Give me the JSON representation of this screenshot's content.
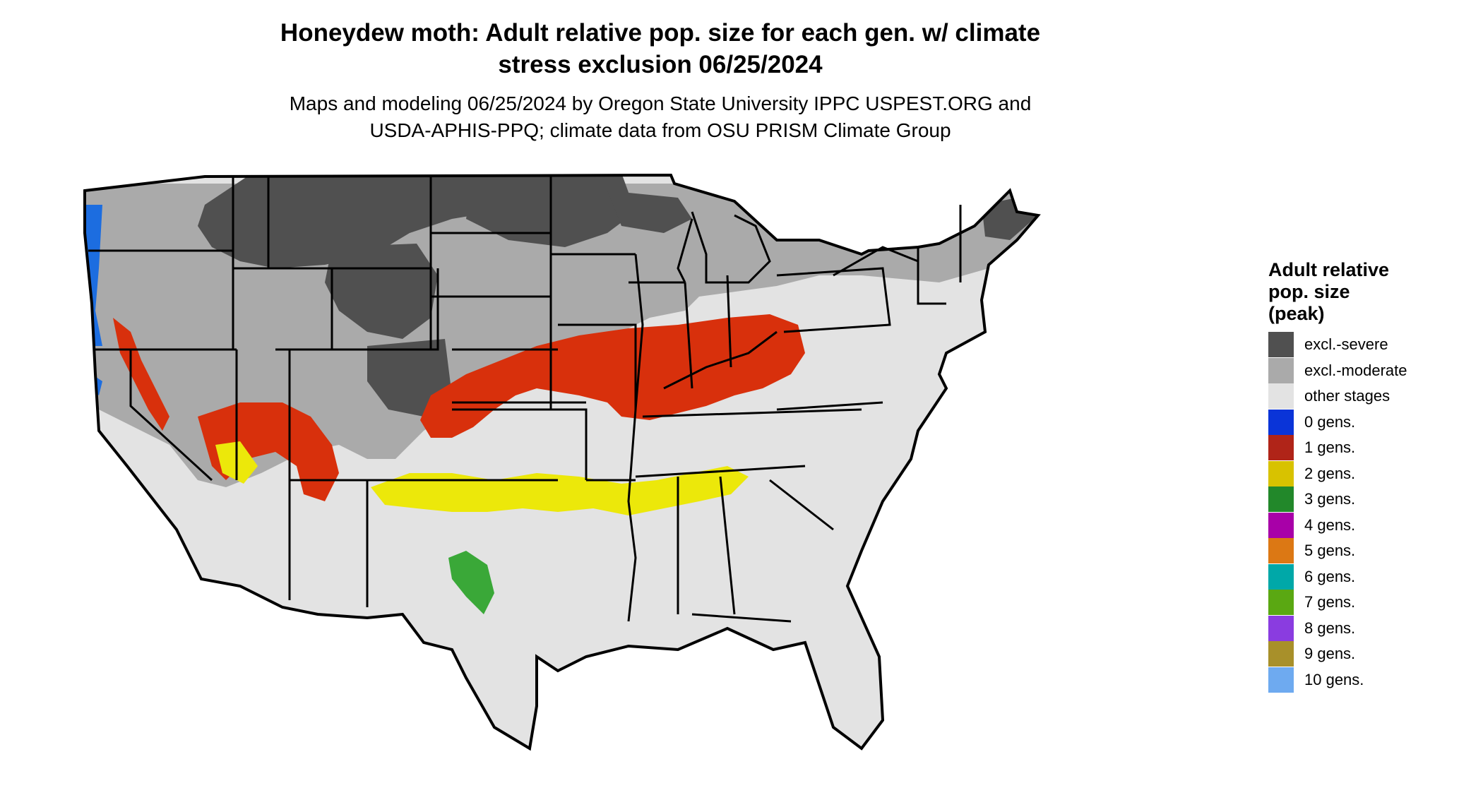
{
  "map": {
    "title_line1": "Honeydew moth: Adult relative pop. size for each gen. w/ climate",
    "title_line2": "stress exclusion 06/25/2024",
    "subtitle_line1": "Maps and modeling 06/25/2024 by Oregon State University IPPC USPEST.ORG and",
    "subtitle_line2": "USDA-APHIS-PPQ; climate data from OSU PRISM Climate Group"
  },
  "legend": {
    "title_line1": "Adult relative",
    "title_line2": "pop. size",
    "title_line3": "(peak)",
    "items": [
      {
        "label": "excl.-severe",
        "color": "#505050"
      },
      {
        "label": "excl.-moderate",
        "color": "#aaaaaa"
      },
      {
        "label": "other stages",
        "color": "#e3e3e3"
      },
      {
        "label": "0 gens.",
        "color": "#0a34d8"
      },
      {
        "label": "1 gens.",
        "color": "#b02418"
      },
      {
        "label": "2 gens.",
        "color": "#d8c200"
      },
      {
        "label": "3 gens.",
        "color": "#22882a"
      },
      {
        "label": "4 gens.",
        "color": "#a800a8"
      },
      {
        "label": "5 gens.",
        "color": "#dc7814"
      },
      {
        "label": "6 gens.",
        "color": "#00a8a8"
      },
      {
        "label": "7 gens.",
        "color": "#5aa812"
      },
      {
        "label": "8 gens.",
        "color": "#8a3ce0"
      },
      {
        "label": "9 gens.",
        "color": "#a8902a"
      },
      {
        "label": "10 gens.",
        "color": "#6eaaf0"
      }
    ]
  }
}
